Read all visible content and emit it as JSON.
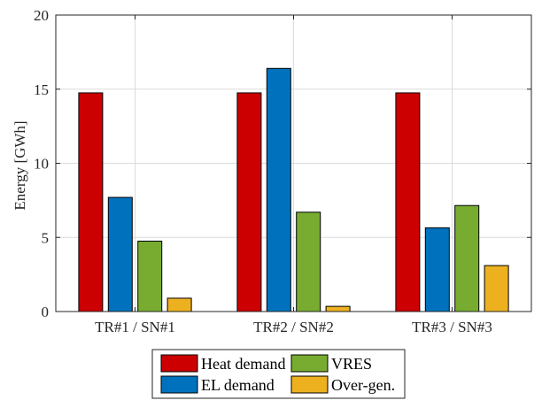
{
  "chart_data": {
    "type": "bar",
    "categories": [
      "TR#1 / SN#1",
      "TR#2 / SN#2",
      "TR#3 / SN#3"
    ],
    "series": [
      {
        "name": "Heat demand",
        "color": "#CC0000",
        "values": [
          14.75,
          14.75,
          14.75
        ]
      },
      {
        "name": "EL demand",
        "color": "#0072BD",
        "values": [
          7.7,
          16.4,
          5.65
        ]
      },
      {
        "name": "VRES",
        "color": "#77AC30",
        "values": [
          4.75,
          6.7,
          7.15
        ]
      },
      {
        "name": "Over-gen.",
        "color": "#EDB120",
        "values": [
          0.9,
          0.35,
          3.1
        ]
      }
    ],
    "title": "",
    "xlabel": "",
    "ylabel": "Energy [GWh]",
    "ylim": [
      0,
      20
    ],
    "yticks": [
      "0",
      "5",
      "10",
      "15",
      "20"
    ],
    "grid": true,
    "legend_placement": "bottom-center, outside, 2 columns"
  }
}
